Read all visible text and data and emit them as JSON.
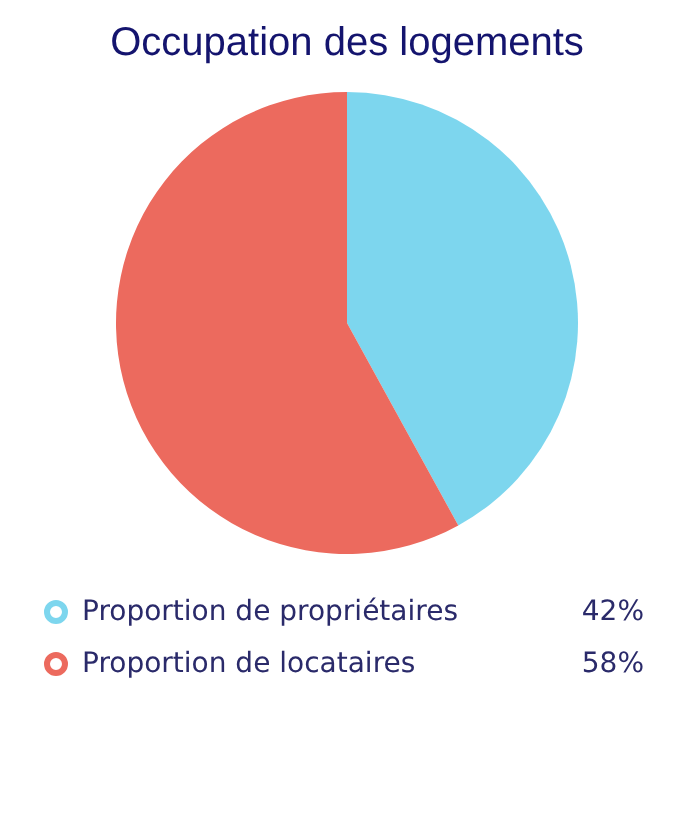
{
  "chart_data": {
    "type": "pie",
    "title": "Occupation des logements",
    "categories": [
      "Proportion de propriétaires",
      "Proportion de locataires"
    ],
    "values": [
      42,
      58
    ],
    "colors": [
      "#7dd6ee",
      "#ec6a5e"
    ],
    "value_labels": [
      "42%",
      "58%"
    ],
    "legend": "bottom"
  }
}
